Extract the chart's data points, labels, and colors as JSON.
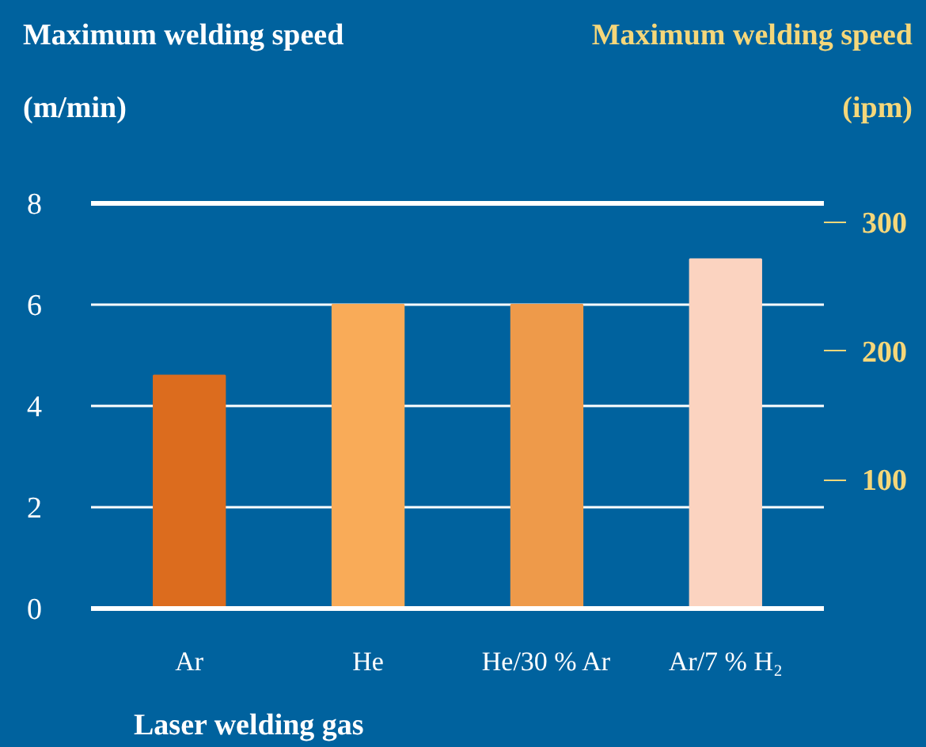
{
  "chart_data": {
    "type": "bar",
    "ylabel": "Maximum welding speed (m/min)",
    "y2label": "Maximum welding speed (ipm)",
    "xlabel": "Laser welding gas",
    "categories": [
      "Ar",
      "He",
      "He/30 % Ar",
      "Ar/7 % H₂"
    ],
    "values": [
      4.6,
      6.0,
      6.0,
      6.9
    ],
    "colors": [
      "#dc6c1e",
      "#f9ab58",
      "#ee9a4a",
      "#fbd3c0"
    ],
    "ylim": [
      0,
      8
    ],
    "yticks": [
      0,
      2,
      4,
      6,
      8
    ],
    "y2lim": [
      0,
      315
    ],
    "y2ticks": [
      100,
      200,
      300
    ],
    "grid": "y"
  }
}
